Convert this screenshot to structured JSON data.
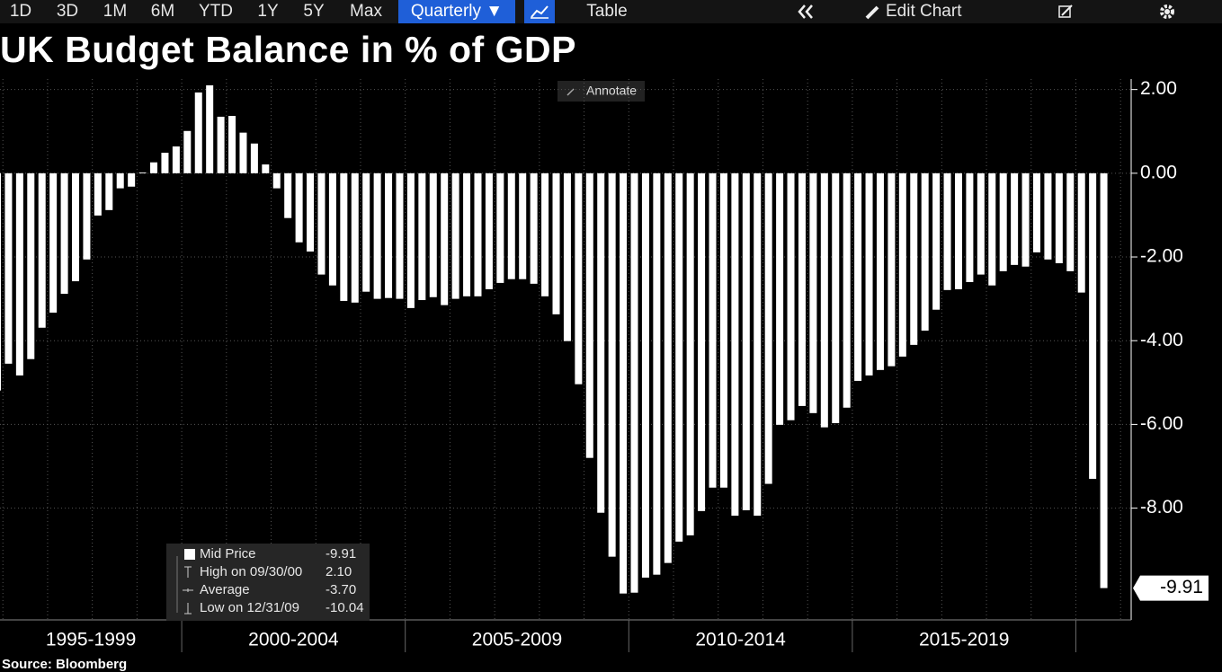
{
  "toolbar": {
    "ranges": [
      "1D",
      "3D",
      "1M",
      "6M",
      "YTD",
      "1Y",
      "5Y",
      "Max"
    ],
    "frequency": "Quarterly ▼",
    "table": "Table",
    "edit": "Edit Chart"
  },
  "chart_data": {
    "type": "bar",
    "title": "UK Budget Balance in % of GDP",
    "source": "Source: Bloomberg",
    "annotate": "Annotate",
    "color": "#ffffff",
    "grid": true,
    "x_labels": [
      "1995-1999",
      "2000-2004",
      "2005-2009",
      "2010-2014",
      "2015-2019"
    ],
    "values": [
      -5.19,
      -4.55,
      -4.83,
      -4.44,
      -3.69,
      -3.33,
      -2.88,
      -2.58,
      -2.06,
      -1.01,
      -0.88,
      -0.36,
      -0.32,
      0.02,
      0.26,
      0.49,
      0.64,
      1.01,
      1.93,
      2.1,
      1.35,
      1.37,
      0.97,
      0.71,
      0.21,
      -0.36,
      -1.07,
      -1.65,
      -1.87,
      -2.42,
      -2.68,
      -3.05,
      -3.09,
      -2.83,
      -3.0,
      -2.98,
      -3.0,
      -3.22,
      -3.03,
      -2.96,
      -3.15,
      -3.0,
      -2.94,
      -2.94,
      -2.77,
      -2.62,
      -2.53,
      -2.53,
      -2.64,
      -2.94,
      -3.37,
      -4.01,
      -5.04,
      -6.8,
      -8.11,
      -9.16,
      -10.04,
      -10.02,
      -9.66,
      -9.59,
      -9.31,
      -8.8,
      -8.65,
      -8.07,
      -7.51,
      -7.51,
      -8.18,
      -8.05,
      -8.18,
      -7.42,
      -6.01,
      -5.9,
      -5.56,
      -5.73,
      -6.07,
      -5.97,
      -5.6,
      -4.96,
      -4.83,
      -4.7,
      -4.61,
      -4.38,
      -4.1,
      -3.76,
      -3.26,
      -2.79,
      -2.77,
      -2.6,
      -2.42,
      -2.68,
      -2.34,
      -2.19,
      -2.23,
      -1.89,
      -2.06,
      -2.15,
      -2.34,
      -2.85,
      -7.3,
      -9.91
    ],
    "ylim": [
      -10.67,
      2.25
    ],
    "yticks": [
      {
        "value": 2,
        "label": "2.00"
      },
      {
        "value": 0,
        "label": "0.00"
      },
      {
        "value": -2,
        "label": "-2.00"
      },
      {
        "value": -4,
        "label": "-4.00"
      },
      {
        "value": -6,
        "label": "-6.00"
      },
      {
        "value": -8,
        "label": "-8.00"
      }
    ],
    "stats": [
      {
        "label": "Mid Price",
        "value": "-9.91"
      },
      {
        "label": "High on 09/30/00",
        "value": "2.10"
      },
      {
        "label": "Average",
        "value": "-3.70"
      },
      {
        "label": "Low on 12/31/09",
        "value": "-10.04"
      }
    ]
  }
}
